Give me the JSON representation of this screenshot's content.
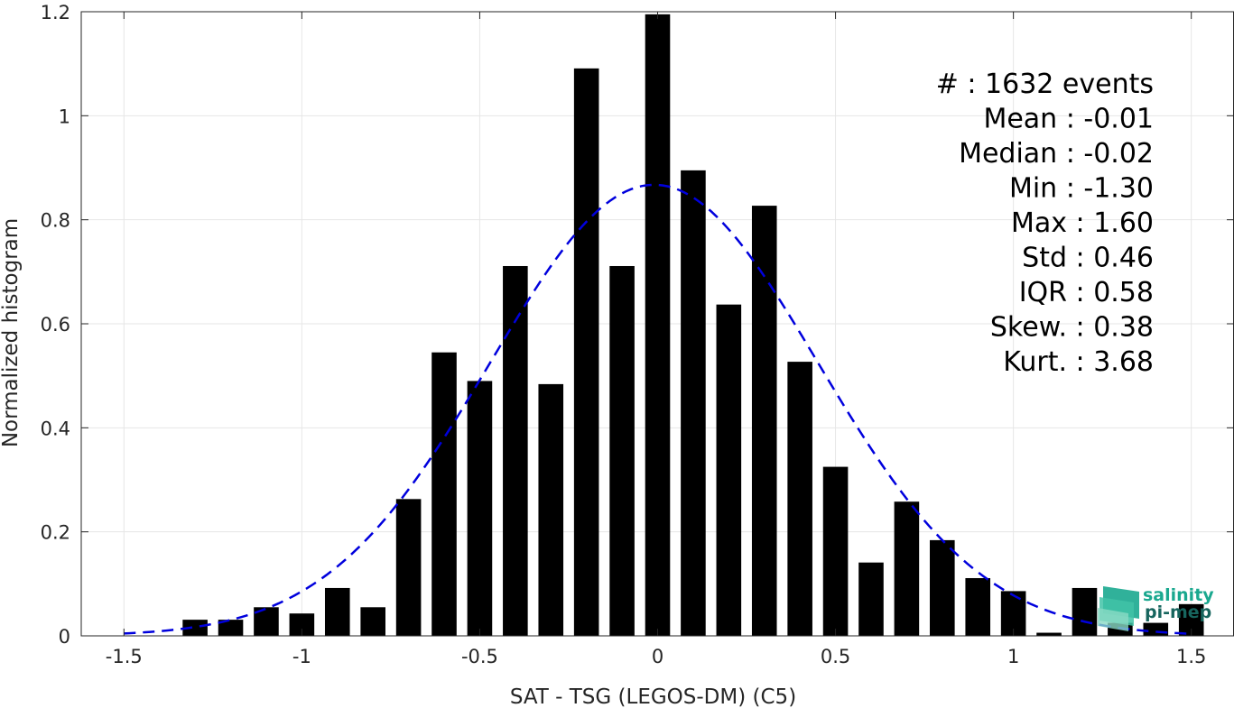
{
  "chart_data": {
    "type": "bar",
    "xlabel": "SAT - TSG (LEGOS-DM) (C5)",
    "ylabel": "Normalized histogram",
    "xlim": [
      -1.62,
      1.62
    ],
    "ylim": [
      0,
      1.2
    ],
    "x_ticks": [
      -1.5,
      -1,
      -0.5,
      0,
      0.5,
      1,
      1.5
    ],
    "x_tick_labels": [
      "-1.5",
      "-1",
      "-0.5",
      "0",
      "0.5",
      "1",
      "1.5"
    ],
    "y_ticks": [
      0,
      0.2,
      0.4,
      0.6,
      0.8,
      1,
      1.2
    ],
    "y_tick_labels": [
      "0",
      "0.2",
      "0.4",
      "0.6",
      "0.8",
      "1",
      "1.2"
    ],
    "grid": true,
    "bar_width": 0.07,
    "bars": {
      "x": [
        -1.3,
        -1.2,
        -1.1,
        -1.0,
        -0.9,
        -0.8,
        -0.7,
        -0.6,
        -0.5,
        -0.4,
        -0.3,
        -0.2,
        -0.1,
        0.0,
        0.1,
        0.2,
        0.3,
        0.4,
        0.5,
        0.6,
        0.7,
        0.8,
        0.9,
        1.0,
        1.1,
        1.2,
        1.3,
        1.4,
        1.5
      ],
      "values": [
        0.031,
        0.031,
        0.055,
        0.043,
        0.092,
        0.055,
        0.263,
        0.545,
        0.49,
        0.711,
        0.484,
        1.091,
        0.711,
        1.195,
        0.895,
        0.637,
        0.827,
        0.527,
        0.325,
        0.141,
        0.258,
        0.184,
        0.111,
        0.086,
        0.006,
        0.092,
        0.025,
        0.025,
        0.061
      ],
      "color": "#000000"
    },
    "fit_curve": {
      "style": "dashed",
      "color": "#0000dd",
      "mean": -0.01,
      "std": 0.46,
      "x_range": [
        -1.5,
        1.5
      ]
    },
    "stats_text": [
      "#  : 1632 events",
      "Mean : -0.01",
      "Median : -0.02",
      "Min : -1.30",
      "Max : 1.60",
      "Std : 0.46",
      "IQR : 0.58",
      "Skew. : 0.38",
      "Kurt. : 3.68"
    ]
  },
  "logo": {
    "line1": "salinity",
    "line2": "pi-mep",
    "color1": "#1aa88f",
    "color2": "#17655e"
  }
}
